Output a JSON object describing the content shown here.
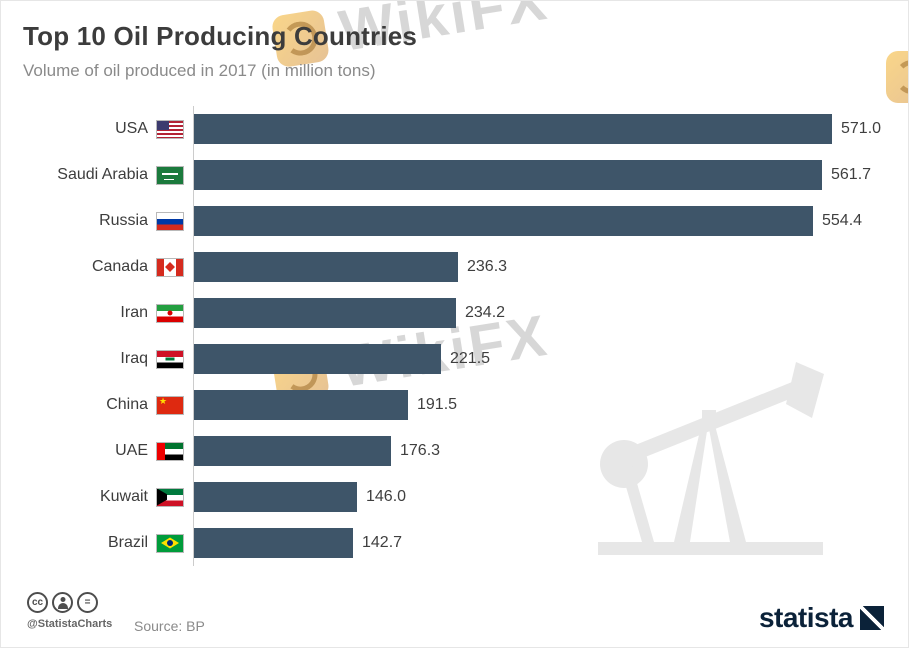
{
  "header": {
    "title": "Top 10 Oil Producing Countries",
    "subtitle": "Volume of oil produced in 2017 (in million tons)"
  },
  "chart_data": {
    "type": "bar",
    "orientation": "horizontal",
    "title": "Top 10 Oil Producing Countries",
    "subtitle": "Volume of oil produced in 2017 (in million tons)",
    "categories": [
      "USA",
      "Saudi Arabia",
      "Russia",
      "Canada",
      "Iran",
      "Iraq",
      "China",
      "UAE",
      "Kuwait",
      "Brazil"
    ],
    "values": [
      571.0,
      561.7,
      554.4,
      236.3,
      234.2,
      221.5,
      191.5,
      176.3,
      146.0,
      142.7
    ],
    "value_labels": [
      "571.0",
      "561.7",
      "554.4",
      "236.3",
      "234.2",
      "221.5",
      "191.5",
      "176.3",
      "146.0",
      "142.7"
    ],
    "flags": [
      "usa-flag",
      "saudi-arabia-flag",
      "russia-flag",
      "canada-flag",
      "iran-flag",
      "iraq-flag",
      "china-flag",
      "uae-flag",
      "kuwait-flag",
      "brazil-flag"
    ],
    "bar_color": "#3e5569",
    "xlim": [
      0,
      571
    ],
    "grid": "off",
    "legend": "none"
  },
  "watermark": {
    "text": "WikiFX"
  },
  "footer": {
    "credit": "@StatistaCharts",
    "source_label": "Source: BP",
    "brand": "statista",
    "license_icons": [
      "cc-icon",
      "attribution-icon",
      "equals-icon"
    ]
  }
}
